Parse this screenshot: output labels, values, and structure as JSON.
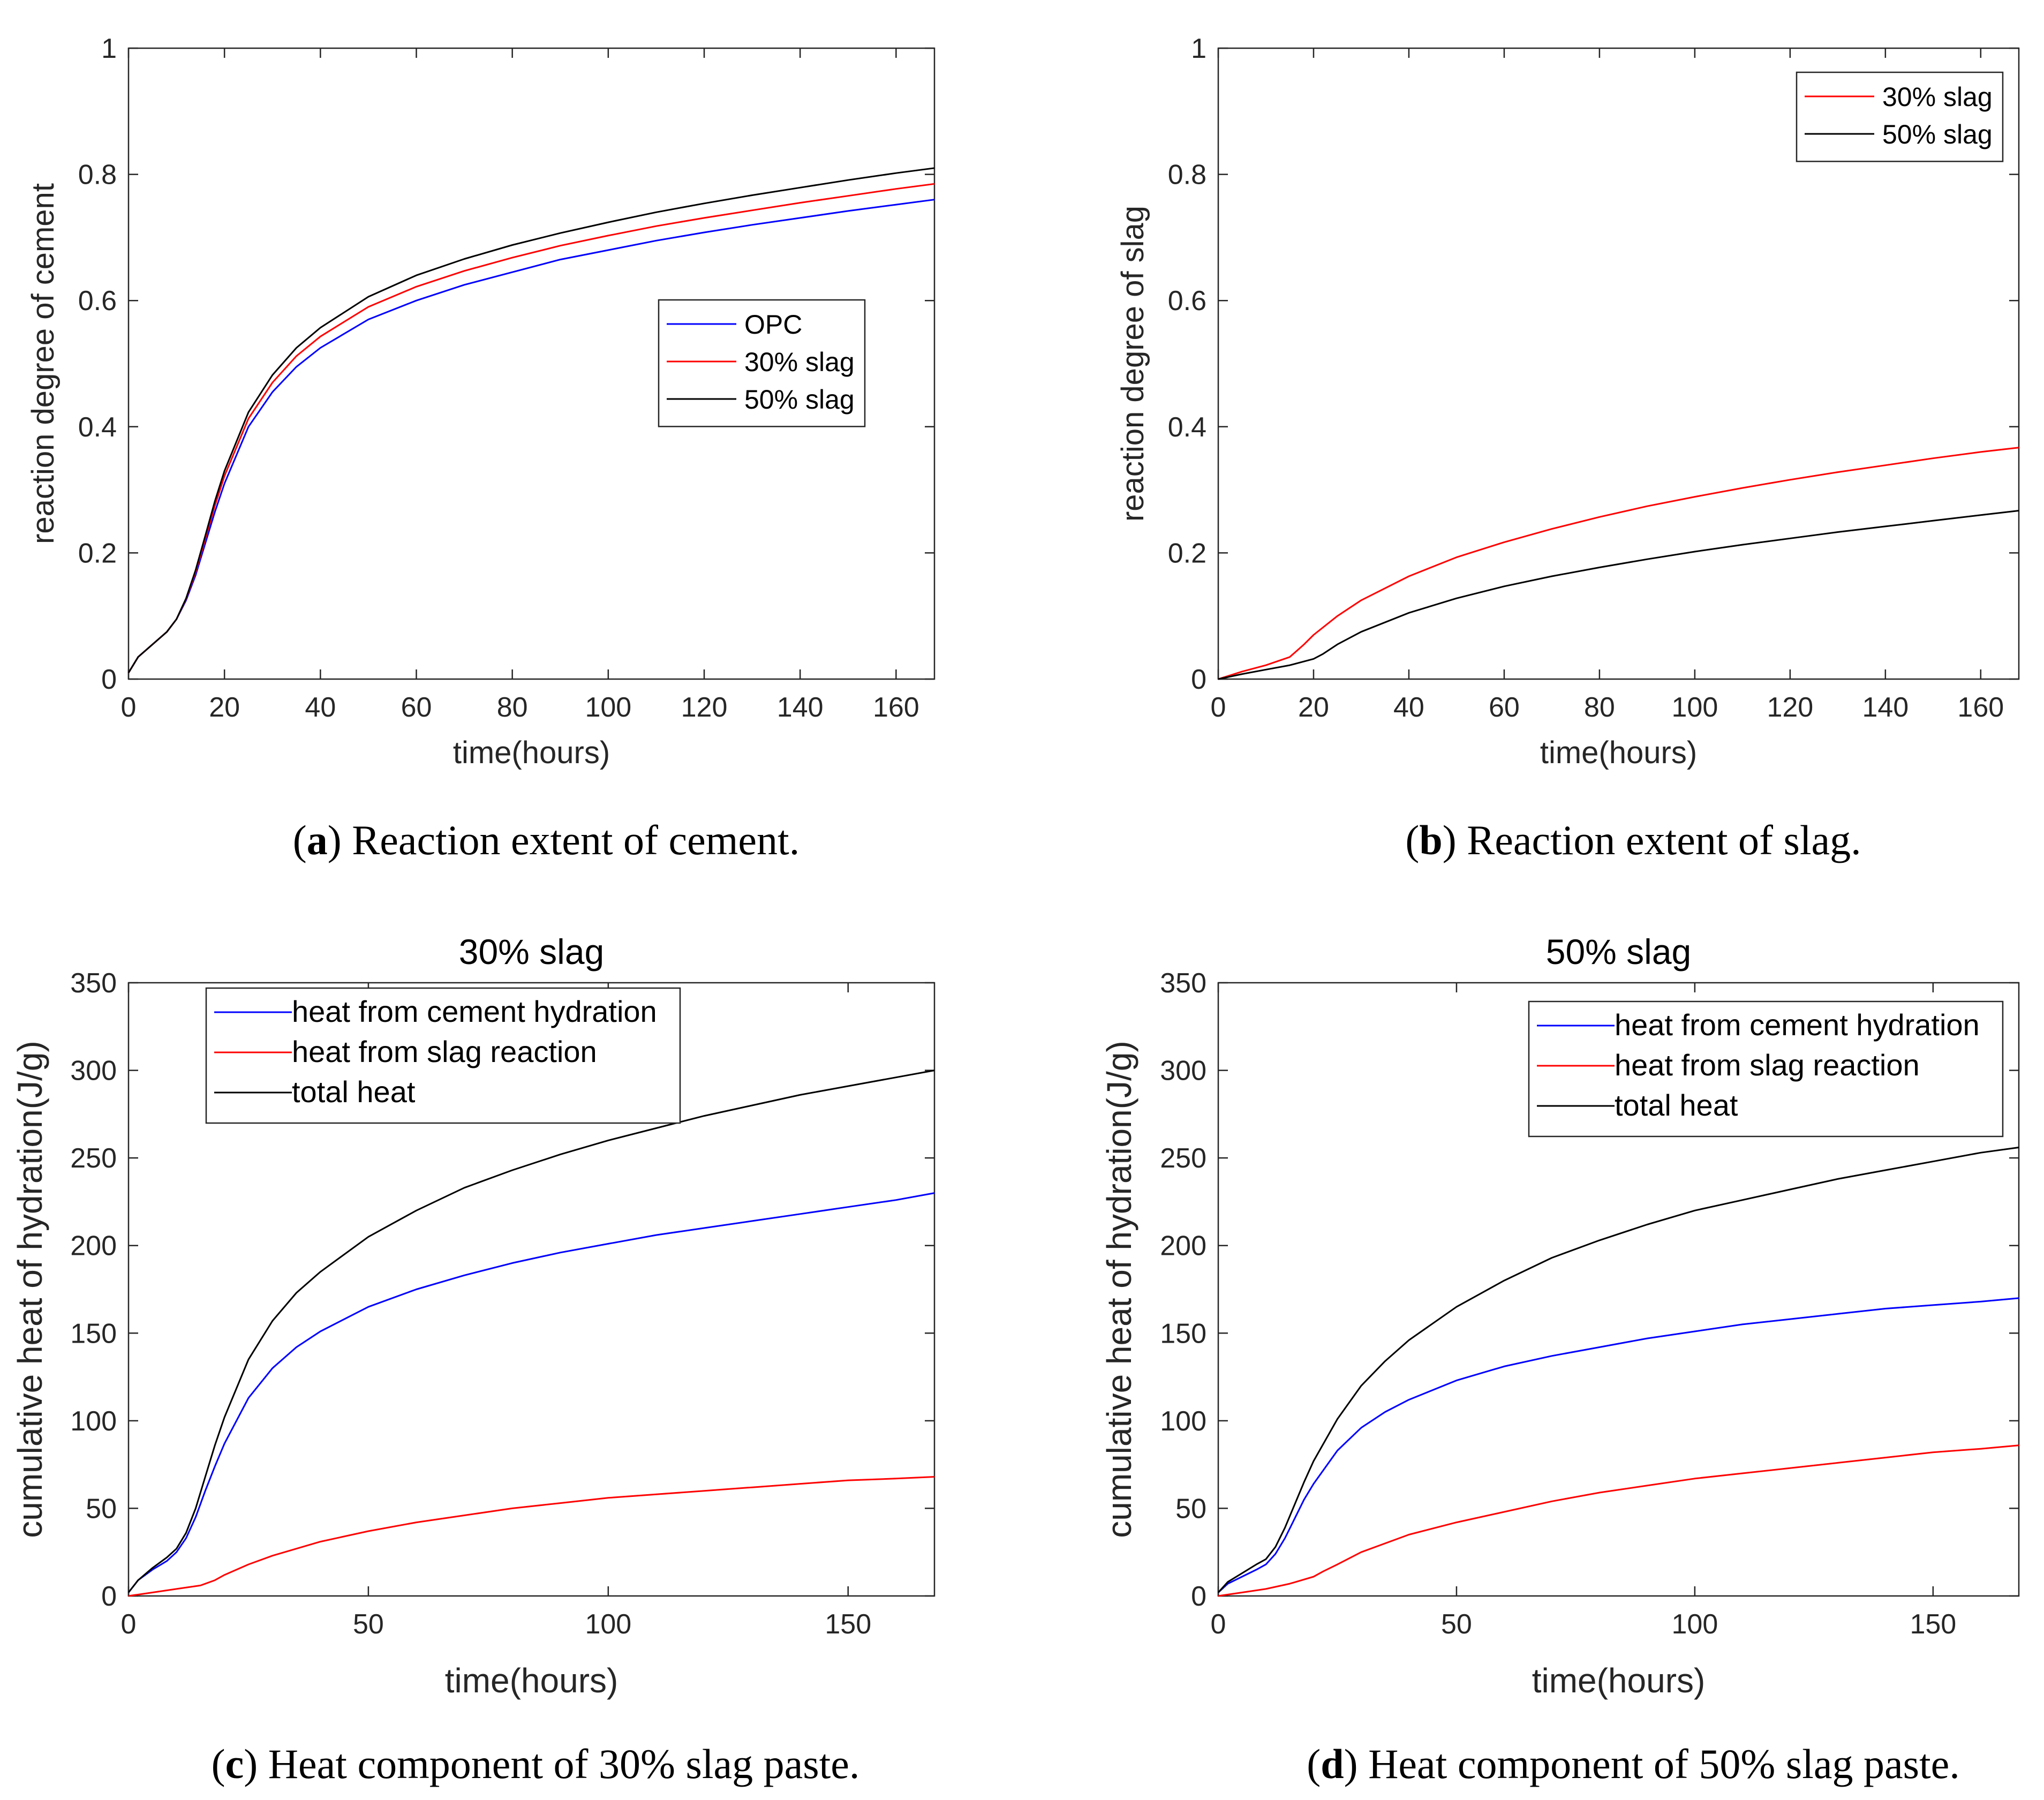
{
  "panels": [
    {
      "id": "a",
      "caption_letter": "a",
      "caption_text": "Reaction extent of cement.",
      "chart_data": {
        "type": "line",
        "title": "",
        "xlabel": "time(hours)",
        "ylabel": "reaction degree of cement",
        "xlim": [
          0,
          168
        ],
        "ylim": [
          0,
          1
        ],
        "xticks": [
          0,
          20,
          40,
          60,
          80,
          100,
          120,
          140,
          160
        ],
        "yticks": [
          0,
          0.2,
          0.4,
          0.6,
          0.8,
          1
        ],
        "ytick_labels": [
          "0",
          "0.2",
          "0.4",
          "0.6",
          "0.8",
          "1"
        ],
        "legend_placement": "center-right",
        "series": [
          {
            "name": "OPC",
            "color": "#0000ff",
            "x": [
              0,
              2,
              5,
              8,
              10,
              12,
              14,
              16,
              18,
              20,
              25,
              30,
              35,
              40,
              50,
              60,
              70,
              80,
              90,
              100,
              110,
              120,
              130,
              140,
              150,
              160,
              168
            ],
            "y": [
              0.01,
              0.035,
              0.055,
              0.075,
              0.095,
              0.125,
              0.165,
              0.215,
              0.265,
              0.31,
              0.4,
              0.455,
              0.495,
              0.525,
              0.57,
              0.6,
              0.625,
              0.645,
              0.665,
              0.68,
              0.695,
              0.708,
              0.72,
              0.731,
              0.742,
              0.752,
              0.76
            ]
          },
          {
            "name": "30% slag",
            "color": "#ff0000",
            "x": [
              0,
              2,
              5,
              8,
              10,
              12,
              14,
              16,
              18,
              20,
              25,
              30,
              35,
              40,
              50,
              60,
              70,
              80,
              90,
              100,
              110,
              120,
              130,
              140,
              150,
              160,
              168
            ],
            "y": [
              0.01,
              0.035,
              0.055,
              0.075,
              0.095,
              0.127,
              0.17,
              0.222,
              0.275,
              0.322,
              0.413,
              0.47,
              0.512,
              0.543,
              0.59,
              0.622,
              0.647,
              0.668,
              0.687,
              0.703,
              0.718,
              0.731,
              0.743,
              0.755,
              0.766,
              0.777,
              0.785
            ]
          },
          {
            "name": "50% slag",
            "color": "#000000",
            "x": [
              0,
              2,
              5,
              8,
              10,
              12,
              14,
              16,
              18,
              20,
              25,
              30,
              35,
              40,
              50,
              60,
              70,
              80,
              90,
              100,
              110,
              120,
              130,
              140,
              150,
              160,
              168
            ],
            "y": [
              0.01,
              0.035,
              0.055,
              0.075,
              0.095,
              0.128,
              0.173,
              0.227,
              0.282,
              0.33,
              0.423,
              0.482,
              0.525,
              0.557,
              0.606,
              0.64,
              0.666,
              0.688,
              0.707,
              0.724,
              0.74,
              0.754,
              0.767,
              0.779,
              0.791,
              0.802,
              0.81
            ]
          }
        ]
      }
    },
    {
      "id": "b",
      "caption_letter": "b",
      "caption_text": "Reaction extent of slag.",
      "chart_data": {
        "type": "line",
        "title": "",
        "xlabel": "time(hours)",
        "ylabel": "reaction degree of slag",
        "xlim": [
          0,
          168
        ],
        "ylim": [
          0,
          1
        ],
        "xticks": [
          0,
          20,
          40,
          60,
          80,
          100,
          120,
          140,
          160
        ],
        "yticks": [
          0,
          0.2,
          0.4,
          0.6,
          0.8,
          1
        ],
        "ytick_labels": [
          "0",
          "0.2",
          "0.4",
          "0.6",
          "0.8",
          "1"
        ],
        "legend_placement": "top-right",
        "series": [
          {
            "name": "30% slag",
            "color": "#ff0000",
            "x": [
              0,
              5,
              10,
              15,
              18,
              20,
              25,
              30,
              40,
              50,
              60,
              70,
              80,
              90,
              100,
              110,
              120,
              130,
              140,
              150,
              160,
              168
            ],
            "y": [
              0,
              0.012,
              0.022,
              0.035,
              0.055,
              0.07,
              0.1,
              0.125,
              0.163,
              0.193,
              0.217,
              0.238,
              0.257,
              0.274,
              0.289,
              0.303,
              0.316,
              0.328,
              0.339,
              0.35,
              0.36,
              0.367
            ]
          },
          {
            "name": "50% slag",
            "color": "#000000",
            "x": [
              0,
              5,
              10,
              15,
              20,
              22,
              25,
              30,
              40,
              50,
              60,
              70,
              80,
              90,
              100,
              110,
              120,
              130,
              140,
              150,
              160,
              168
            ],
            "y": [
              0,
              0.008,
              0.015,
              0.022,
              0.032,
              0.04,
              0.055,
              0.075,
              0.105,
              0.128,
              0.147,
              0.163,
              0.177,
              0.19,
              0.202,
              0.213,
              0.223,
              0.233,
              0.242,
              0.251,
              0.26,
              0.267
            ]
          }
        ]
      }
    },
    {
      "id": "c",
      "caption_letter": "c",
      "caption_text": "Heat component of 30% slag paste.",
      "chart_data": {
        "type": "line",
        "title": "30% slag",
        "xlabel": "time(hours)",
        "ylabel": "cumulative heat of hydration(J/g)",
        "xlim": [
          0,
          168
        ],
        "ylim": [
          0,
          350
        ],
        "xticks": [
          0,
          50,
          100,
          150
        ],
        "yticks": [
          0,
          50,
          100,
          150,
          200,
          250,
          300,
          350
        ],
        "ytick_labels": [
          "0",
          "50",
          "100",
          "150",
          "200",
          "250",
          "300",
          "350"
        ],
        "legend_placement": "top-left",
        "series": [
          {
            "name": "heat from cement hydration",
            "color": "#0000ff",
            "x": [
              0,
              2,
              5,
              8,
              10,
              12,
              14,
              16,
              18,
              20,
              25,
              30,
              35,
              40,
              50,
              60,
              70,
              80,
              90,
              100,
              110,
              120,
              130,
              140,
              150,
              160,
              168
            ],
            "y": [
              2,
              9,
              15,
              20,
              25,
              33,
              45,
              60,
              74,
              87,
              113,
              130,
              142,
              151,
              165,
              175,
              183,
              190,
              196,
              201,
              206,
              210,
              214,
              218,
              222,
              226,
              230
            ]
          },
          {
            "name": "heat from slag reaction",
            "color": "#ff0000",
            "x": [
              0,
              5,
              10,
              15,
              18,
              20,
              25,
              30,
              40,
              50,
              60,
              70,
              80,
              90,
              100,
              110,
              120,
              130,
              140,
              150,
              160,
              168
            ],
            "y": [
              0,
              2,
              4,
              6,
              9,
              12,
              18,
              23,
              31,
              37,
              42,
              46,
              50,
              53,
              56,
              58,
              60,
              62,
              64,
              66,
              67,
              68
            ]
          },
          {
            "name": "total heat",
            "color": "#000000",
            "x": [
              0,
              2,
              5,
              8,
              10,
              12,
              14,
              16,
              18,
              20,
              25,
              30,
              35,
              40,
              50,
              60,
              70,
              80,
              90,
              100,
              110,
              120,
              130,
              140,
              150,
              160,
              168
            ],
            "y": [
              2,
              9,
              16,
              22,
              27,
              36,
              50,
              68,
              86,
              102,
              135,
              157,
              173,
              185,
              205,
              220,
              233,
              243,
              252,
              260,
              267,
              274,
              280,
              286,
              291,
              296,
              300
            ]
          }
        ]
      }
    },
    {
      "id": "d",
      "caption_letter": "d",
      "caption_text": "Heat component of 50% slag paste.",
      "chart_data": {
        "type": "line",
        "title": "50% slag",
        "xlabel": "time(hours)",
        "ylabel": "cumulative heat of hydration(J/g)",
        "xlim": [
          0,
          168
        ],
        "ylim": [
          0,
          350
        ],
        "xticks": [
          0,
          50,
          100,
          150
        ],
        "yticks": [
          0,
          50,
          100,
          150,
          200,
          250,
          300,
          350
        ],
        "ytick_labels": [
          "0",
          "50",
          "100",
          "150",
          "200",
          "250",
          "300",
          "350"
        ],
        "legend_placement": "top-right",
        "series": [
          {
            "name": "heat from cement hydration",
            "color": "#0000ff",
            "x": [
              0,
              2,
              5,
              8,
              10,
              12,
              14,
              16,
              18,
              20,
              25,
              30,
              35,
              40,
              50,
              60,
              70,
              80,
              90,
              100,
              110,
              120,
              130,
              140,
              150,
              160,
              168
            ],
            "y": [
              2,
              7,
              11,
              15,
              18,
              24,
              33,
              44,
              55,
              64,
              83,
              96,
              105,
              112,
              123,
              131,
              137,
              142,
              147,
              151,
              155,
              158,
              161,
              164,
              166,
              168,
              170
            ]
          },
          {
            "name": "heat from slag reaction",
            "color": "#ff0000",
            "x": [
              0,
              5,
              10,
              15,
              20,
              22,
              25,
              30,
              40,
              50,
              60,
              70,
              80,
              90,
              100,
              110,
              120,
              130,
              140,
              150,
              160,
              168
            ],
            "y": [
              0,
              2,
              4,
              7,
              11,
              14,
              18,
              25,
              35,
              42,
              48,
              54,
              59,
              63,
              67,
              70,
              73,
              76,
              79,
              82,
              84,
              86
            ]
          },
          {
            "name": "total heat",
            "color": "#000000",
            "x": [
              0,
              2,
              5,
              8,
              10,
              12,
              14,
              16,
              18,
              20,
              25,
              30,
              35,
              40,
              50,
              60,
              70,
              80,
              90,
              100,
              110,
              120,
              130,
              140,
              150,
              160,
              168
            ],
            "y": [
              2,
              8,
              13,
              18,
              21,
              28,
              39,
              52,
              65,
              77,
              101,
              120,
              134,
              146,
              165,
              180,
              193,
              203,
              212,
              220,
              226,
              232,
              238,
              243,
              248,
              253,
              256
            ]
          }
        ]
      }
    }
  ]
}
